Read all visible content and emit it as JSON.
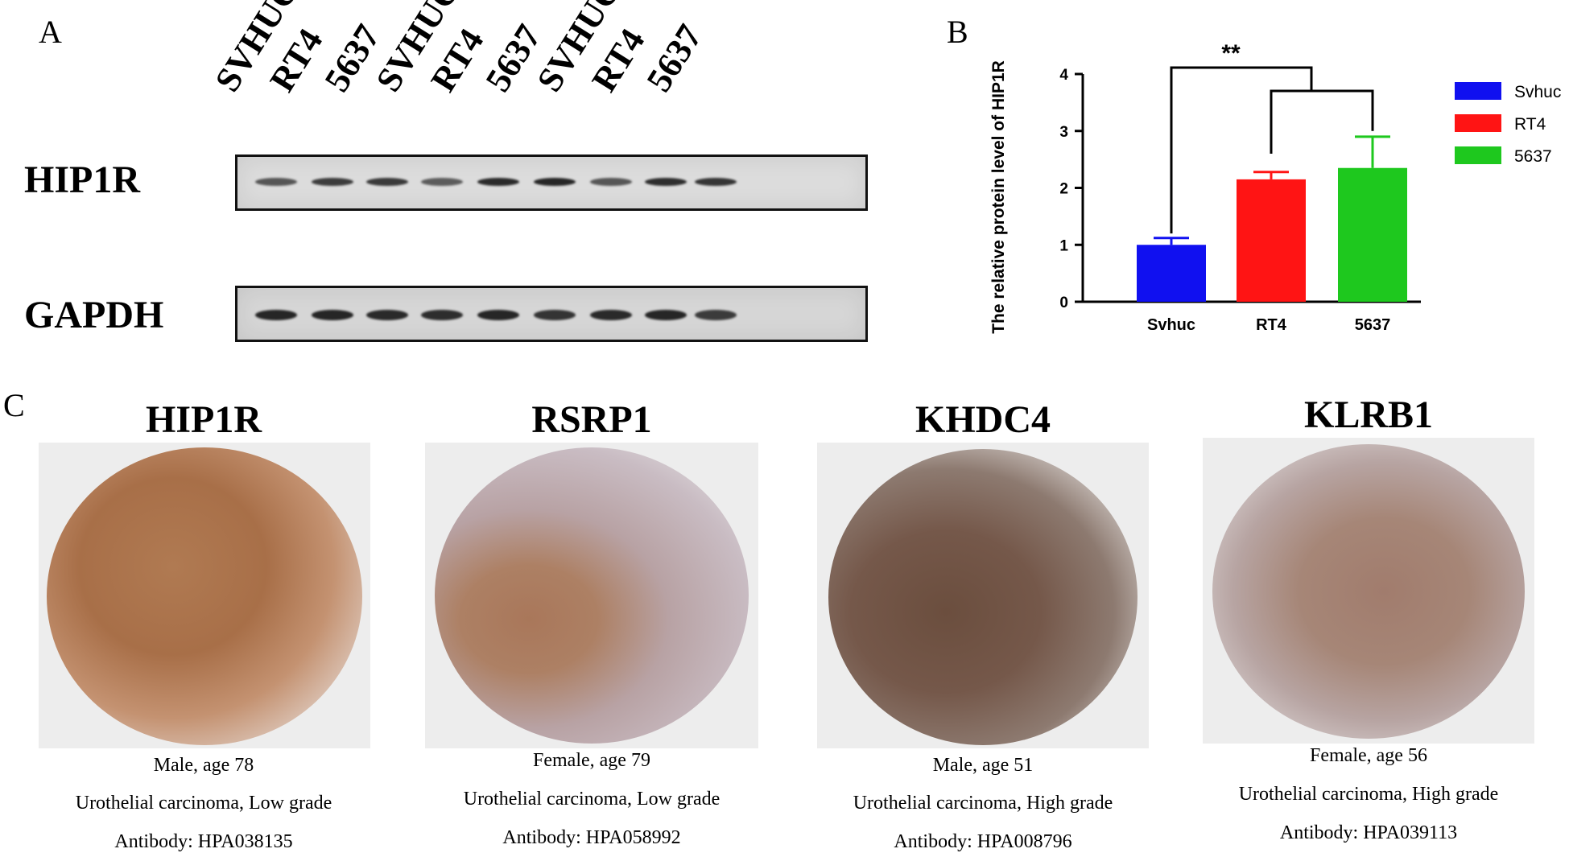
{
  "panel_a": {
    "letter": "A",
    "lanes": [
      "SVHUC",
      "RT4",
      "5637",
      "SVHUC",
      "RT4",
      "5637",
      "SVHUC",
      "RT4",
      "5637"
    ],
    "blots": [
      {
        "name": "HIP1R",
        "band_intensity": [
          0.62,
          0.78,
          0.8,
          0.55,
          0.92,
          0.95,
          0.6,
          0.88,
          0.85
        ]
      },
      {
        "name": "GAPDH",
        "band_intensity": [
          0.95,
          0.95,
          0.92,
          0.88,
          0.95,
          0.85,
          0.92,
          0.95,
          0.78
        ]
      }
    ]
  },
  "panel_b": {
    "letter": "B",
    "significance": "**",
    "legend_position": "right",
    "colors": {
      "Svhuc": "#1010f0",
      "RT4": "#ff1414",
      "5637": "#1ec81e"
    }
  },
  "chart_data": {
    "type": "bar",
    "categories": [
      "Svhuc",
      "RT4",
      "5637"
    ],
    "values": [
      1.0,
      2.15,
      2.35
    ],
    "errors": [
      0.12,
      0.13,
      0.55
    ],
    "ylabel": "The relative protein level of HIP1R",
    "xlabel": "",
    "ylim": [
      0,
      4
    ],
    "yticks": [
      "0",
      "1",
      "2",
      "3",
      "4"
    ],
    "legend": [
      "Svhuc",
      "RT4",
      "5637"
    ],
    "grid": false
  },
  "panel_c": {
    "letter": "C",
    "items": [
      {
        "title": "HIP1R",
        "sex_age": "Male, age 78",
        "diagnosis": "Urothelial carcinoma, Low grade",
        "antibody": "Antibody: HPA038135"
      },
      {
        "title": "RSRP1",
        "sex_age": "Female, age 79",
        "diagnosis": "Urothelial carcinoma, Low grade",
        "antibody": "Antibody: HPA058992"
      },
      {
        "title": "KHDC4",
        "sex_age": "Male, age 51",
        "diagnosis": "Urothelial carcinoma, High grade",
        "antibody": "Antibody: HPA008796"
      },
      {
        "title": "KLRB1",
        "sex_age": "Female, age 56",
        "diagnosis": "Urothelial carcinoma, High grade",
        "antibody": "Antibody: HPA039113"
      }
    ]
  }
}
